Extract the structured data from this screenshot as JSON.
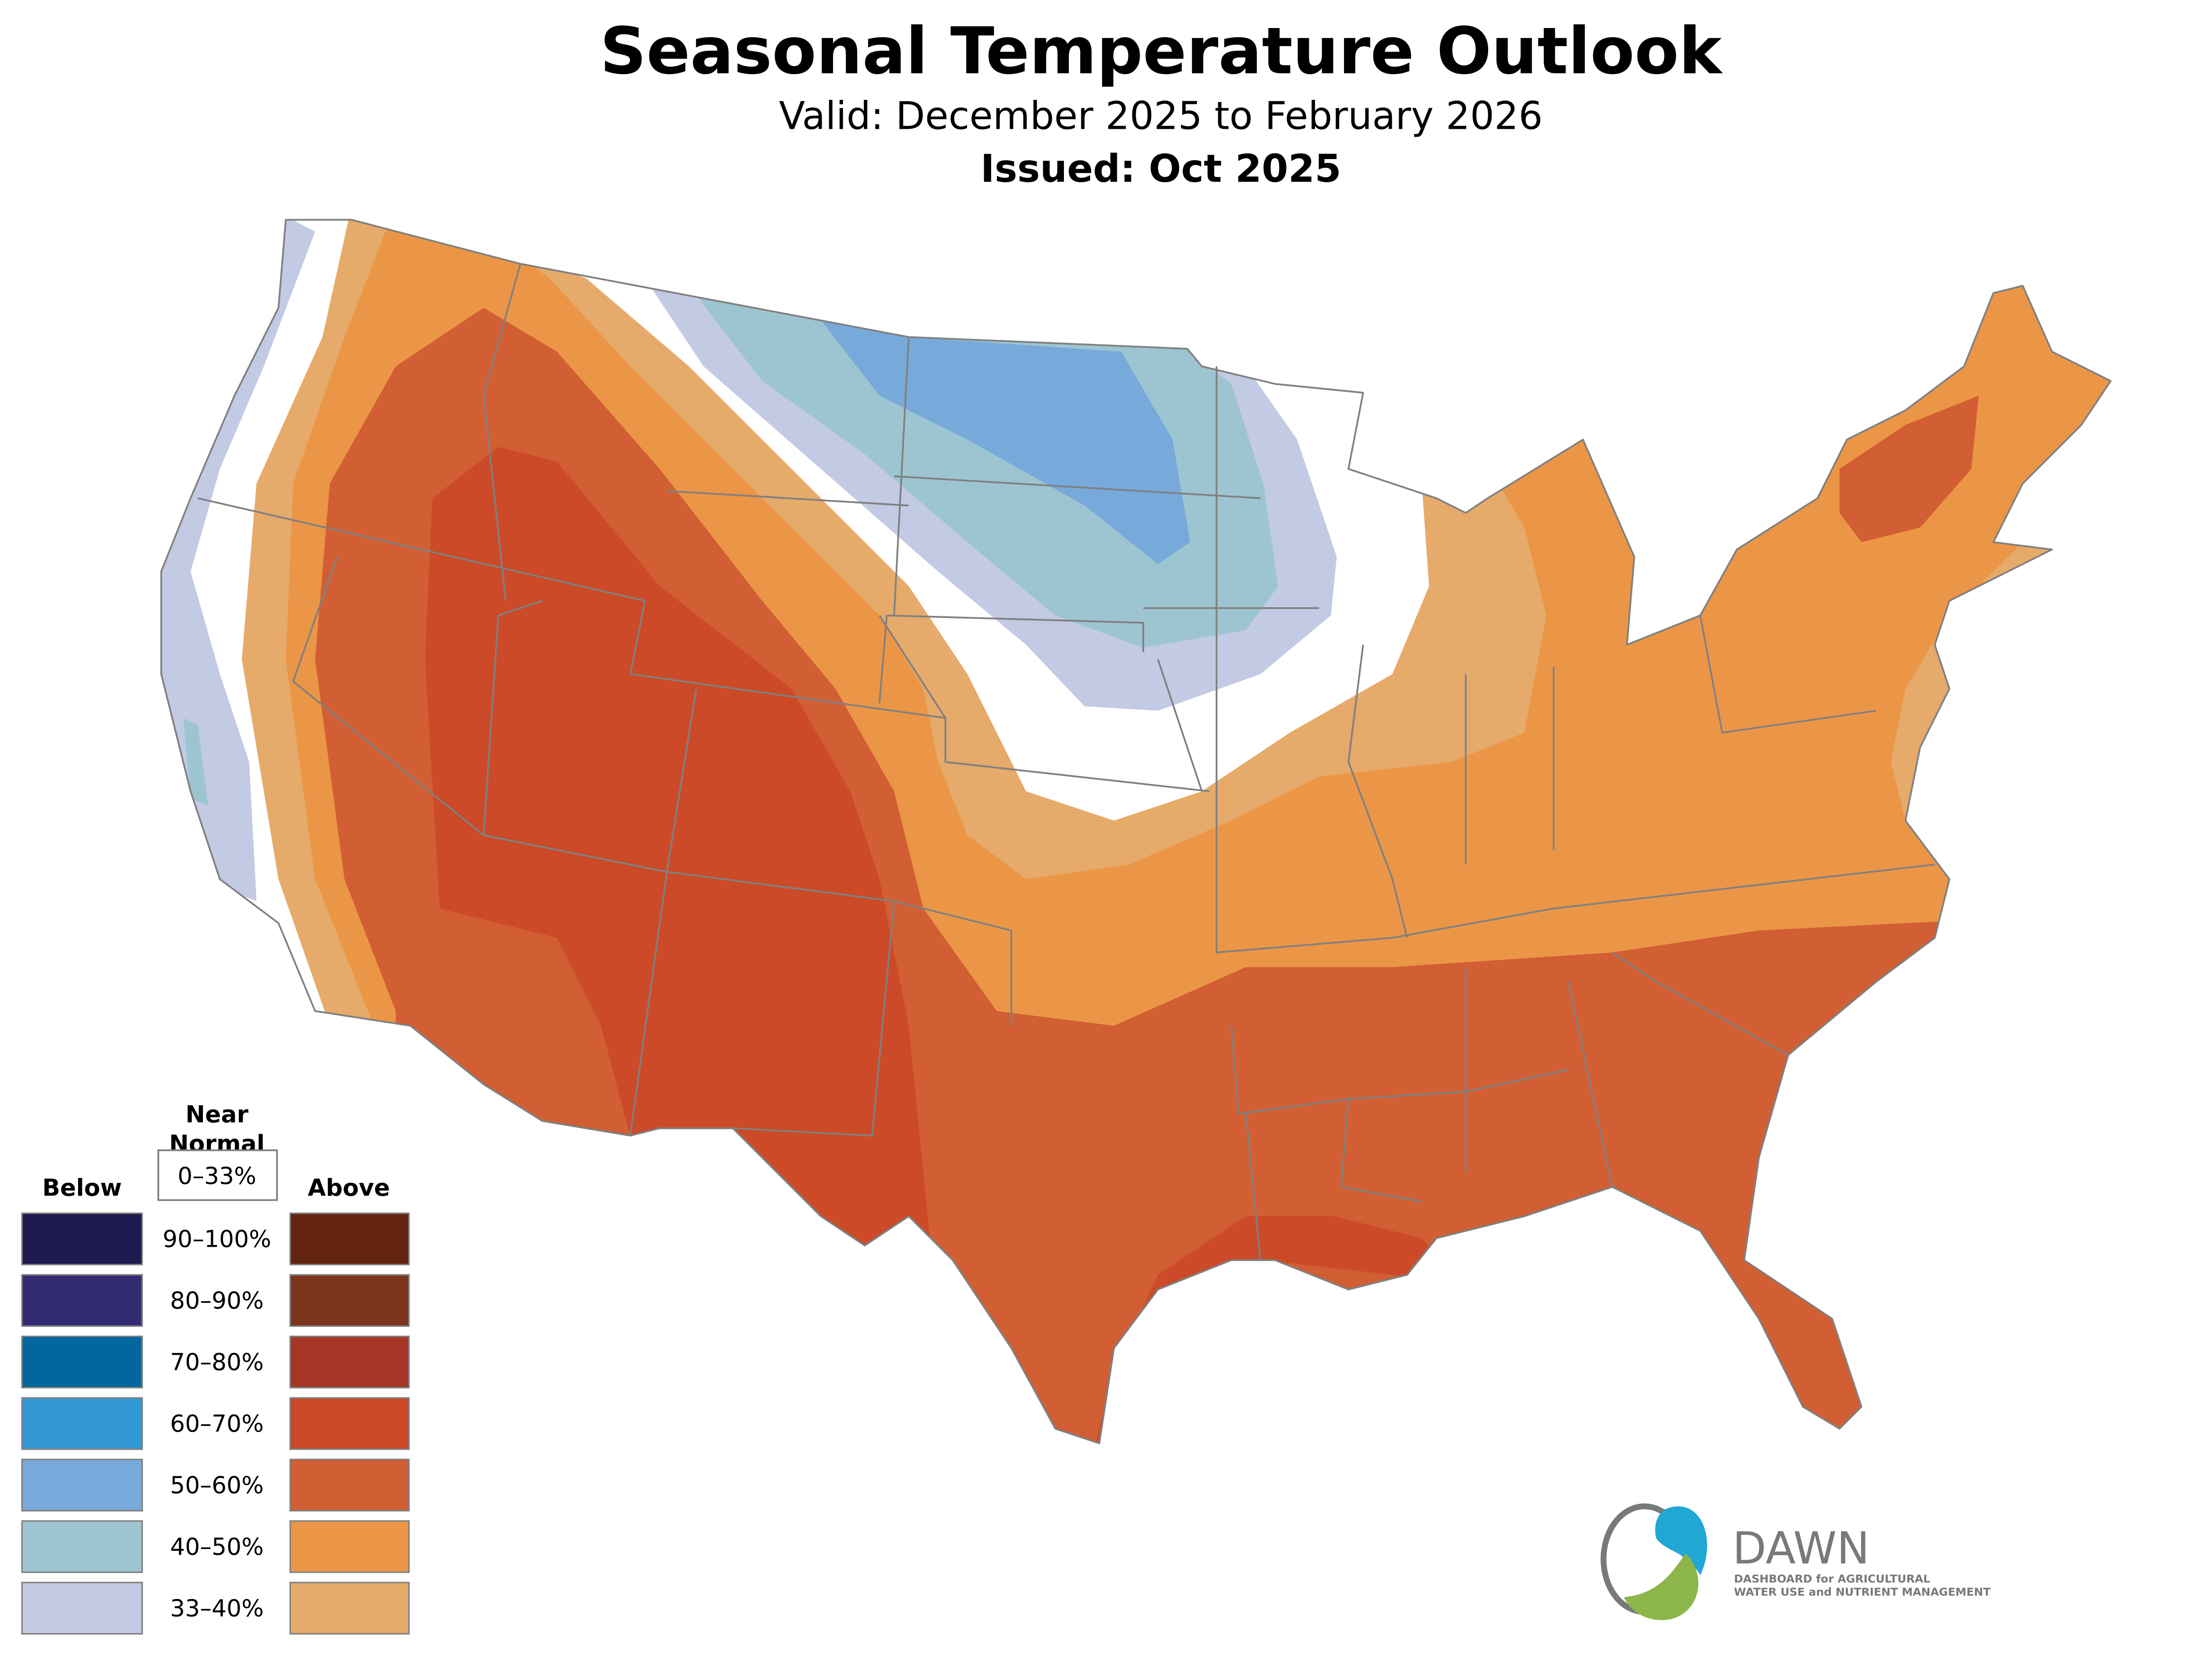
{
  "header": {
    "title": "Seasonal Temperature Outlook",
    "valid": "Valid: December 2025 to February 2026",
    "issued": "Issued: Oct 2025"
  },
  "legend": {
    "near_normal_title_1": "Near",
    "near_normal_title_2": "Normal",
    "near_normal_range": "0–33%",
    "below_label": "Below",
    "above_label": "Above",
    "rows": [
      {
        "range": "90–100%",
        "below_color": "#1f1a4f",
        "above_color": "#622410"
      },
      {
        "range": "80–90%",
        "below_color": "#332c73",
        "above_color": "#7d341c"
      },
      {
        "range": "70–80%",
        "below_color": "#02679d",
        "above_color": "#a53524"
      },
      {
        "range": "60–70%",
        "below_color": "#3399d5",
        "above_color": "#cc4a27"
      },
      {
        "range": "50–60%",
        "below_color": "#78a9db",
        "above_color": "#d25e33"
      },
      {
        "range": "40–50%",
        "below_color": "#9dc5d1",
        "above_color": "#eb9646"
      },
      {
        "range": "33–40%",
        "below_color": "#c3cae4",
        "above_color": "#e6aa6a"
      }
    ]
  },
  "logo": {
    "name": "DAWN",
    "line1": "DASHBOARD for AGRICULTURAL",
    "line2": "WATER USE and NUTRIENT MANAGEMENT",
    "blue": "#20a7d4",
    "green": "#8cb64a",
    "gray": "#77797a"
  }
}
